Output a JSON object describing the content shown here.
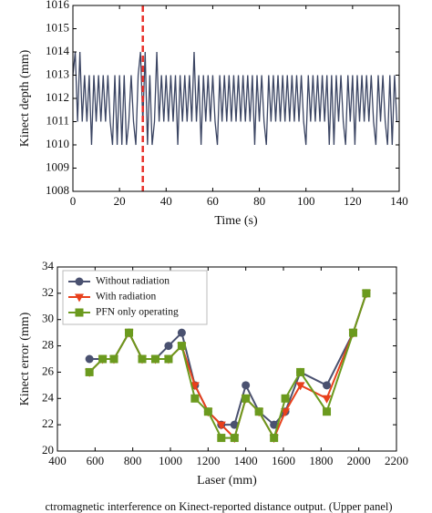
{
  "chart_data": [
    {
      "type": "line",
      "xlabel": "Time (s)",
      "ylabel": "Kinect depth (mm)",
      "xlim": [
        0,
        140
      ],
      "ylim": [
        1008,
        1016
      ],
      "xticks": [
        0,
        20,
        40,
        60,
        80,
        100,
        120,
        140
      ],
      "yticks": [
        1008,
        1009,
        1010,
        1011,
        1012,
        1013,
        1014,
        1015,
        1016
      ],
      "grid": false,
      "vline": {
        "x": 30,
        "color": "#e8302a"
      },
      "x": [
        0,
        1,
        2,
        3,
        4,
        5,
        6,
        7,
        8,
        9,
        10,
        11,
        12,
        13,
        14,
        15,
        16,
        17,
        18,
        19,
        20,
        21,
        22,
        23,
        24,
        25,
        26,
        27,
        28,
        29,
        30,
        31,
        32,
        33,
        34,
        35,
        36,
        37,
        38,
        39,
        40,
        41,
        42,
        43,
        44,
        45,
        46,
        47,
        48,
        49,
        50,
        51,
        52,
        53,
        54,
        55,
        56,
        57,
        58,
        59,
        60,
        61,
        62,
        63,
        64,
        65,
        66,
        67,
        68,
        69,
        70,
        71,
        72,
        73,
        74,
        75,
        76,
        77,
        78,
        79,
        80,
        81,
        82,
        83,
        84,
        85,
        86,
        87,
        88,
        89,
        90,
        91,
        92,
        93,
        94,
        95,
        96,
        97,
        98,
        99,
        100,
        101,
        102,
        103,
        104,
        105,
        106,
        107,
        108,
        109,
        110,
        111,
        112,
        113,
        114,
        115,
        116,
        117,
        118,
        119,
        120,
        121,
        122,
        123,
        124,
        125,
        126,
        127,
        128,
        129,
        130,
        131,
        132,
        133,
        134,
        135,
        136,
        137,
        138,
        139
      ],
      "series": [
        {
          "color": "#3b4563",
          "values": [
            1013,
            1014,
            1011,
            1014,
            1011,
            1013,
            1011,
            1013,
            1010,
            1013,
            1011,
            1013,
            1011,
            1013,
            1011,
            1013,
            1011,
            1010,
            1013,
            1010,
            1013,
            1010,
            1013,
            1010,
            1011,
            1013,
            1011,
            1010,
            1013,
            1014,
            1011,
            1014,
            1010,
            1013,
            1010,
            1011,
            1014,
            1011,
            1013,
            1011,
            1013,
            1011,
            1013,
            1011,
            1013,
            1010,
            1013,
            1011,
            1013,
            1011,
            1013,
            1011,
            1014,
            1011,
            1013,
            1010,
            1013,
            1011,
            1013,
            1011,
            1013,
            1011,
            1010,
            1013,
            1011,
            1013,
            1011,
            1013,
            1011,
            1013,
            1011,
            1013,
            1011,
            1013,
            1011,
            1013,
            1011,
            1013,
            1010,
            1013,
            1011,
            1013,
            1011,
            1010,
            1013,
            1011,
            1013,
            1011,
            1013,
            1011,
            1013,
            1011,
            1013,
            1011,
            1013,
            1011,
            1013,
            1011,
            1013,
            1011,
            1010,
            1013,
            1011,
            1013,
            1011,
            1013,
            1011,
            1013,
            1011,
            1013,
            1010,
            1013,
            1010,
            1013,
            1011,
            1013,
            1011,
            1010,
            1013,
            1011,
            1013,
            1010,
            1013,
            1011,
            1013,
            1011,
            1013,
            1011,
            1013,
            1011,
            1010,
            1013,
            1011,
            1013,
            1011,
            1010,
            1013,
            1010,
            1013,
            1011
          ]
        }
      ]
    },
    {
      "type": "line",
      "xlabel": "Laser (mm)",
      "ylabel": "Kinect error (mm)",
      "xlim": [
        400,
        2200
      ],
      "ylim": [
        20,
        34
      ],
      "xticks": [
        400,
        600,
        800,
        1000,
        1200,
        1400,
        1600,
        1800,
        2000,
        2200
      ],
      "yticks": [
        20,
        22,
        24,
        26,
        28,
        30,
        32,
        34
      ],
      "grid": false,
      "legend": "upper-left",
      "x": [
        570,
        640,
        700,
        780,
        850,
        920,
        990,
        1060,
        1130,
        1200,
        1270,
        1340,
        1400,
        1470,
        1550,
        1610,
        1690,
        1830,
        1970,
        2040
      ],
      "series": [
        {
          "name": "Without radiation",
          "color": "#4a5170",
          "marker": "circle",
          "values": [
            27,
            27,
            27,
            29,
            27,
            27,
            28,
            29,
            25,
            23,
            22,
            22,
            25,
            23,
            22,
            23,
            26,
            25,
            29,
            32
          ]
        },
        {
          "name": "With radiation",
          "color": "#e8401c",
          "marker": "triangle",
          "values": [
            26,
            27,
            27,
            29,
            27,
            27,
            27,
            28,
            25,
            23,
            22,
            21,
            24,
            23,
            21,
            23,
            25,
            24,
            29,
            32
          ]
        },
        {
          "name": "PFN only operating",
          "color": "#6b9a1e",
          "marker": "square",
          "values": [
            26,
            27,
            27,
            29,
            27,
            27,
            27,
            28,
            24,
            23,
            21,
            21,
            24,
            23,
            21,
            24,
            26,
            23,
            29,
            32
          ]
        }
      ]
    }
  ],
  "caption": "ctromagnetic interference on Kinect-reported distance output. (Upper panel)"
}
